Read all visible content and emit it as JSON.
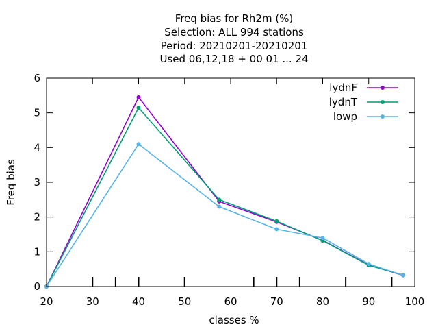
{
  "chart_data": {
    "type": "line",
    "title_lines": [
      "Freq bias  for Rh2m (%)",
      "Selection: ALL    994 stations",
      "Period: 20210201-20210201",
      "Used  06,12,18  + 00 01 ... 24"
    ],
    "xlabel": "classes %",
    "ylabel": "Freq bias",
    "xlim": [
      20,
      100
    ],
    "ylim": [
      0,
      6
    ],
    "xticks": [
      20,
      30,
      40,
      50,
      60,
      70,
      80,
      90,
      100
    ],
    "yticks": [
      0,
      1,
      2,
      3,
      4,
      5,
      6
    ],
    "xtick_labels": [
      "20",
      "30",
      "40",
      "50",
      "60",
      "70",
      "80",
      "90",
      "100"
    ],
    "ytick_labels": [
      "0",
      "1",
      "2",
      "3",
      "4",
      "5",
      "6"
    ],
    "bottom_minor_ticks": [
      30,
      35,
      40,
      50,
      65,
      70,
      75,
      85,
      95
    ],
    "legend_position": "top-right",
    "series": [
      {
        "name": "lydnF",
        "color": "#9400d3",
        "x": [
          20,
          40,
          57.5,
          70,
          80,
          90,
          97.5
        ],
        "y": [
          0,
          5.45,
          2.45,
          1.86,
          1.33,
          0.62,
          0.32
        ]
      },
      {
        "name": "lydnT",
        "color": "#009e73",
        "x": [
          20,
          40,
          57.5,
          70,
          80,
          90,
          97.5
        ],
        "y": [
          0,
          5.15,
          2.5,
          1.88,
          1.32,
          0.61,
          0.33
        ]
      },
      {
        "name": "lowp",
        "color": "#56b4e9",
        "x": [
          20,
          40,
          57.5,
          70,
          80,
          90,
          97.5
        ],
        "y": [
          0,
          4.1,
          2.3,
          1.65,
          1.4,
          0.65,
          0.32
        ]
      }
    ]
  }
}
